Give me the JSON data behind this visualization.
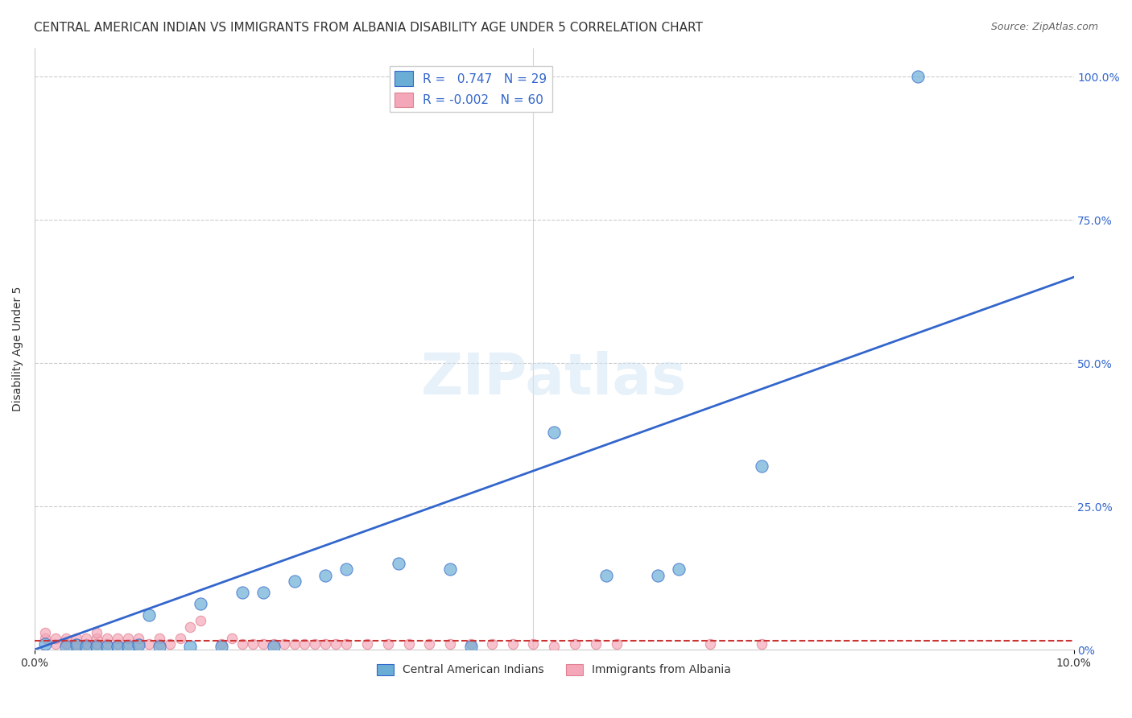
{
  "title": "CENTRAL AMERICAN INDIAN VS IMMIGRANTS FROM ALBANIA DISABILITY AGE UNDER 5 CORRELATION CHART",
  "source": "Source: ZipAtlas.com",
  "ylabel_left": "Disability Age Under 5",
  "legend1_label": "R =   0.747   N = 29",
  "legend2_label": "R = -0.002   N = 60",
  "blue_color": "#6aaed6",
  "pink_color": "#f4a7b9",
  "trend_blue": "#3366cc",
  "trend_pink": "#cc3333",
  "blue_scatter_x": [
    0.001,
    0.003,
    0.004,
    0.005,
    0.006,
    0.007,
    0.008,
    0.009,
    0.01,
    0.011,
    0.012,
    0.015,
    0.016,
    0.018,
    0.02,
    0.022,
    0.023,
    0.025,
    0.028,
    0.03,
    0.035,
    0.04,
    0.042,
    0.05,
    0.055,
    0.06,
    0.062,
    0.07,
    0.085
  ],
  "blue_scatter_y": [
    0.01,
    0.005,
    0.008,
    0.005,
    0.005,
    0.005,
    0.005,
    0.005,
    0.008,
    0.06,
    0.005,
    0.005,
    0.08,
    0.005,
    0.1,
    0.1,
    0.005,
    0.12,
    0.13,
    0.14,
    0.15,
    0.14,
    0.005,
    0.38,
    0.13,
    0.13,
    0.14,
    0.32,
    1.0
  ],
  "pink_scatter_x": [
    0.001,
    0.001,
    0.002,
    0.002,
    0.003,
    0.003,
    0.003,
    0.004,
    0.004,
    0.004,
    0.005,
    0.005,
    0.005,
    0.006,
    0.006,
    0.006,
    0.006,
    0.007,
    0.007,
    0.008,
    0.008,
    0.009,
    0.009,
    0.01,
    0.01,
    0.011,
    0.012,
    0.012,
    0.013,
    0.014,
    0.015,
    0.016,
    0.018,
    0.019,
    0.02,
    0.021,
    0.022,
    0.023,
    0.024,
    0.025,
    0.026,
    0.027,
    0.028,
    0.029,
    0.03,
    0.032,
    0.034,
    0.036,
    0.038,
    0.04,
    0.042,
    0.044,
    0.046,
    0.048,
    0.05,
    0.052,
    0.054,
    0.056,
    0.065,
    0.07
  ],
  "pink_scatter_y": [
    0.02,
    0.03,
    0.01,
    0.02,
    0.01,
    0.02,
    0.01,
    0.01,
    0.02,
    0.01,
    0.01,
    0.02,
    0.01,
    0.01,
    0.02,
    0.03,
    0.01,
    0.02,
    0.01,
    0.01,
    0.02,
    0.01,
    0.02,
    0.01,
    0.02,
    0.01,
    0.01,
    0.02,
    0.01,
    0.02,
    0.04,
    0.05,
    0.01,
    0.02,
    0.01,
    0.01,
    0.01,
    0.01,
    0.01,
    0.01,
    0.01,
    0.01,
    0.01,
    0.01,
    0.01,
    0.01,
    0.01,
    0.01,
    0.01,
    0.01,
    0.01,
    0.01,
    0.01,
    0.01,
    0.005,
    0.01,
    0.01,
    0.01,
    0.01,
    0.01
  ],
  "blue_trend_x": [
    0.0,
    0.1
  ],
  "blue_trend_y": [
    0.0,
    0.65
  ],
  "pink_trend_x": [
    0.0,
    0.1
  ],
  "pink_trend_y": [
    0.015,
    0.015
  ],
  "xlim": [
    0.0,
    0.1
  ],
  "ylim": [
    0.0,
    1.05
  ],
  "background_color": "#ffffff",
  "grid_color": "#cccccc",
  "title_fontsize": 11,
  "axis_label_fontsize": 10,
  "legend_bottom": [
    "Central American Indians",
    "Immigrants from Albania"
  ],
  "watermark": "ZIPatlas",
  "right_yticks": [
    0.0,
    0.25,
    0.5,
    0.75,
    1.0
  ],
  "right_yticklabels": [
    "0%",
    "25.0%",
    "50.0%",
    "75.0%",
    "100.0%"
  ]
}
